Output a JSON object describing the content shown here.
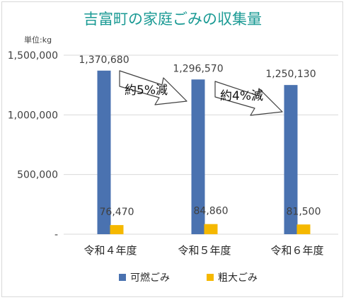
{
  "chart_data": {
    "type": "bar",
    "title": "吉富町の家庭ごみの収集量",
    "unit_label": "単位:kg",
    "categories": [
      "令和４年度",
      "令和５年度",
      "令和６年度"
    ],
    "series": [
      {
        "name": "可燃ごみ",
        "values": [
          1370680,
          1296570,
          1250130
        ],
        "labels": [
          "1,370,680",
          "1,296,570",
          "1,250,130"
        ],
        "color": "#4a72b0"
      },
      {
        "name": "粗大ごみ",
        "values": [
          76470,
          84860,
          81500
        ],
        "labels": [
          "76,470",
          "84,860",
          "81,500"
        ],
        "color": "#f5b800"
      }
    ],
    "yticks": [
      0,
      500000,
      1000000,
      1500000
    ],
    "ytick_labels": [
      "-",
      "500,000",
      "1,000,000",
      "1,500,000"
    ],
    "ylim": [
      0,
      1500000
    ],
    "grid": true,
    "legend_position": "bottom",
    "annotations": [
      {
        "text": "約5%減",
        "from": "令和４年度",
        "to": "令和５年度"
      },
      {
        "text": "約4%減",
        "from": "令和５年度",
        "to": "令和６年度"
      }
    ],
    "colors": {
      "title": "#1a9a94",
      "grid": "#d9d9d9",
      "axis_text": "#404040"
    }
  }
}
